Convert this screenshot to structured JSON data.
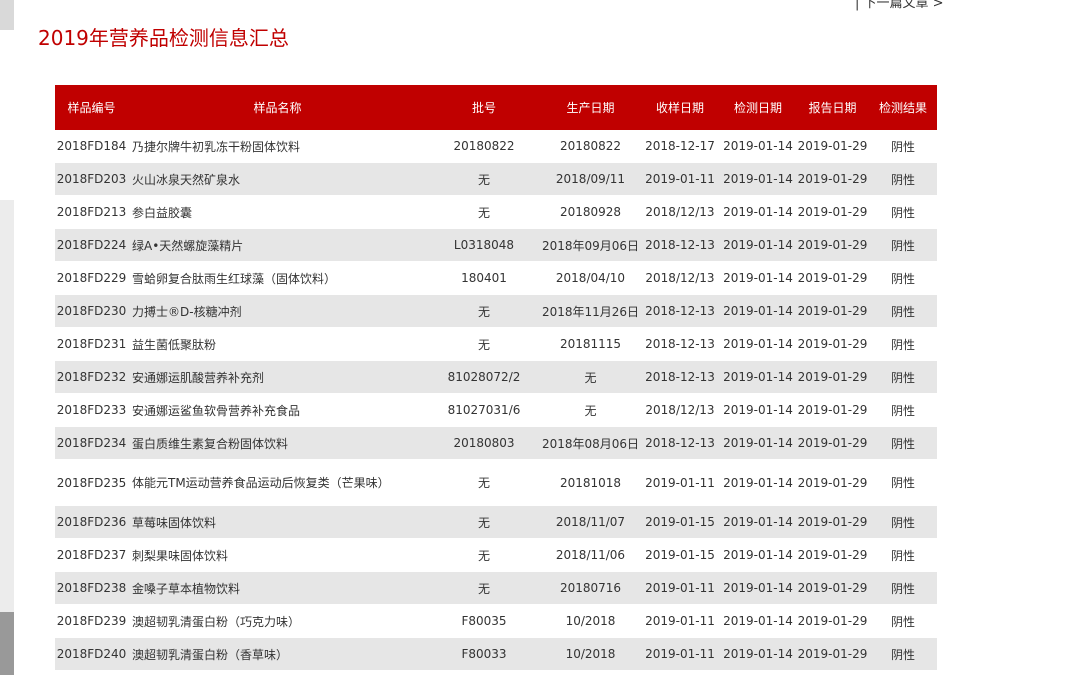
{
  "nav": {
    "next": "| 下一篇文章 >"
  },
  "header": {
    "title": "2019年营养品检测信息汇总"
  },
  "table": {
    "columns": [
      "样品编号",
      "样品名称",
      "批号",
      "生产日期",
      "收样日期",
      "检测日期",
      "报告日期",
      "检测结果"
    ],
    "rows": [
      [
        "2018FD184",
        "乃捷尔牌牛初乳冻干粉固体饮料",
        "20180822",
        "20180822",
        "2018-12-17",
        "2019-01-14",
        "2019-01-29",
        "阴性"
      ],
      [
        "2018FD203",
        "火山冰泉天然矿泉水",
        "无",
        "2018/09/11",
        "2019-01-11",
        "2019-01-14",
        "2019-01-29",
        "阴性"
      ],
      [
        "2018FD213",
        "参白益胶囊",
        "无",
        "20180928",
        "2018/12/13",
        "2019-01-14",
        "2019-01-29",
        "阴性"
      ],
      [
        "2018FD224",
        "绿A•天然螺旋藻精片",
        "L0318048",
        "2018年09月06日",
        "2018-12-13",
        "2019-01-14",
        "2019-01-29",
        "阴性"
      ],
      [
        "2018FD229",
        "雪蛤卵复合肽雨生红球藻（固体饮料）",
        "180401",
        "2018/04/10",
        "2018/12/13",
        "2019-01-14",
        "2019-01-29",
        "阴性"
      ],
      [
        "2018FD230",
        "力搏士®D-核糖冲剂",
        "无",
        "2018年11月26日",
        "2018-12-13",
        "2019-01-14",
        "2019-01-29",
        "阴性"
      ],
      [
        "2018FD231",
        "益生菌低聚肽粉",
        "无",
        "20181115",
        "2018-12-13",
        "2019-01-14",
        "2019-01-29",
        "阴性"
      ],
      [
        "2018FD232",
        "安通娜运肌酸营养补充剂",
        "81028072/2",
        "无",
        "2018-12-13",
        "2019-01-14",
        "2019-01-29",
        "阴性"
      ],
      [
        "2018FD233",
        "安通娜运鲨鱼软骨营养补充食品",
        "81027031/6",
        "无",
        "2018/12/13",
        "2019-01-14",
        "2019-01-29",
        "阴性"
      ],
      [
        "2018FD234",
        "蛋白质维生素复合粉固体饮料",
        "20180803",
        "2018年08月06日",
        "2018-12-13",
        "2019-01-14",
        "2019-01-29",
        "阴性"
      ],
      [
        "2018FD235",
        "体能元TM运动营养食品运动后恢复类（芒果味）",
        "无",
        "20181018",
        "2019-01-11",
        "2019-01-14",
        "2019-01-29",
        "阴性"
      ],
      [
        "2018FD236",
        "草莓味固体饮料",
        "无",
        "2018/11/07",
        "2019-01-15",
        "2019-01-14",
        "2019-01-29",
        "阴性"
      ],
      [
        "2018FD237",
        "刺梨果味固体饮料",
        "无",
        "2018/11/06",
        "2019-01-15",
        "2019-01-14",
        "2019-01-29",
        "阴性"
      ],
      [
        "2018FD238",
        "金嗓子草本植物饮料",
        "无",
        "20180716",
        "2019-01-11",
        "2019-01-14",
        "2019-01-29",
        "阴性"
      ],
      [
        "2018FD239",
        "澳超韧乳清蛋白粉（巧克力味）",
        "F80035",
        "10/2018",
        "2019-01-11",
        "2019-01-14",
        "2019-01-29",
        "阴性"
      ],
      [
        "2018FD240",
        "澳超韧乳清蛋白粉（香草味）",
        "F80033",
        "10/2018",
        "2019-01-11",
        "2019-01-14",
        "2019-01-29",
        "阴性"
      ]
    ]
  }
}
